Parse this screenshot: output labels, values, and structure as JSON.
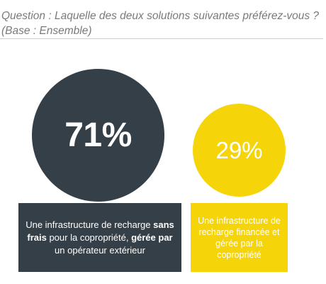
{
  "question": {
    "line1": "Question : Laquelle des deux solutions suivantes préférez-vous ?",
    "line2": "(Base : Ensemble)"
  },
  "colors": {
    "dark": "#343f48",
    "yellow": "#f5d50a",
    "question_text": "#7a7a7a"
  },
  "chart_data": {
    "type": "bubble",
    "title": "Question : Laquelle des deux solutions suivantes préférez-vous ?",
    "subtitle": "(Base : Ensemble)",
    "categories": [
      "Une infrastructure de recharge sans frais pour la copropriété, gérée par un opérateur extérieur",
      "Une infrastructure de recharge financée et gérée par la copropriété"
    ],
    "values": [
      71,
      29
    ],
    "value_labels": [
      "71%",
      "29%"
    ],
    "series": [
      {
        "name": "",
        "values": [
          71,
          29
        ]
      }
    ],
    "unit": "%"
  },
  "options": [
    {
      "value_label": "71%",
      "label_parts": [
        {
          "text": "Une infrastructure de recharge ",
          "bold": false
        },
        {
          "text": "sans frais",
          "bold": true
        },
        {
          "text": " pour la copropriété, ",
          "bold": false
        },
        {
          "text": "gérée par",
          "bold": true
        },
        {
          "text": " un opérateur extérieur",
          "bold": false
        }
      ]
    },
    {
      "value_label": "29%",
      "label_parts": [
        {
          "text": "Une infrastructure de recharge financée et gérée par la copropriété",
          "bold": false
        }
      ]
    }
  ]
}
